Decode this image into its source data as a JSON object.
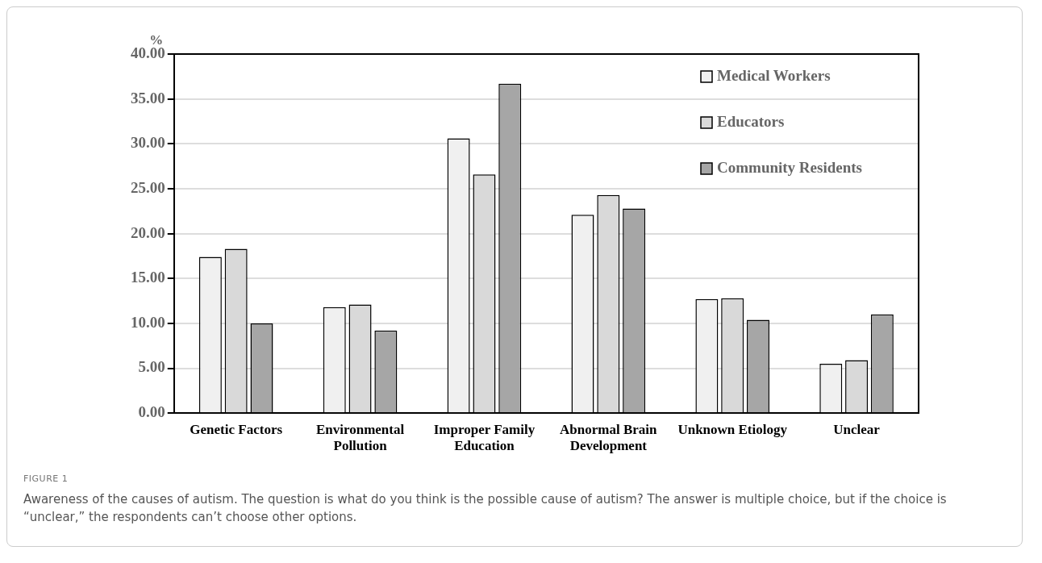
{
  "chart_data": {
    "type": "bar",
    "ylabel": "%",
    "categories": [
      "Genetic Factors",
      "Environmental Pollution",
      "Improper Family Education",
      "Abnormal Brain Development",
      "Unknown Etiology",
      "Unclear"
    ],
    "series": [
      {
        "name": "Medical Workers",
        "color": "#f0f0f0",
        "values": [
          17.4,
          11.8,
          30.6,
          22.1,
          12.7,
          5.5
        ]
      },
      {
        "name": "Educators",
        "color": "#d9d9d9",
        "values": [
          18.3,
          12.1,
          26.6,
          24.3,
          12.8,
          5.9
        ]
      },
      {
        "name": "Community Residents",
        "color": "#a6a6a6",
        "values": [
          10.0,
          9.2,
          36.7,
          22.8,
          10.4,
          11.0
        ]
      }
    ],
    "ylim": [
      0,
      40
    ],
    "yticks": [
      {
        "value": 0,
        "label": "0.00"
      },
      {
        "value": 5,
        "label": "5.00"
      },
      {
        "value": 10,
        "label": "10.00"
      },
      {
        "value": 15,
        "label": "15.00"
      },
      {
        "value": 20,
        "label": "20.00"
      },
      {
        "value": 25,
        "label": "25.00"
      },
      {
        "value": 30,
        "label": "30.00"
      },
      {
        "value": 35,
        "label": "35.00"
      },
      {
        "value": 40,
        "label": "40.00"
      }
    ],
    "grid": "y",
    "legend": "top right",
    "annotations": [
      "FIGURE 1",
      "Awareness of the causes of autism. The question is what do you think is the possible cause of autism? The answer is multiple choice, but if the choice is “unclear,” the respondents can’t choose other options."
    ]
  }
}
